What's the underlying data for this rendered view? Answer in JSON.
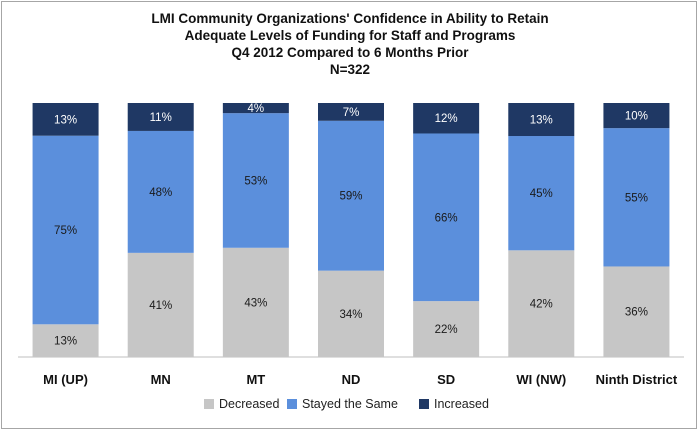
{
  "chart_data": {
    "type": "bar",
    "stacked": true,
    "percent": true,
    "title_lines": [
      "LMI Community Organizations'  Confidence in Ability to Retain",
      "Adequate Levels of Funding for Staff and Programs",
      "Q4 2012 Compared to 6 Months Prior",
      "N=322"
    ],
    "categories": [
      "MI (UP)",
      "MN",
      "MT",
      "ND",
      "SD",
      "WI (NW)",
      "Ninth District"
    ],
    "series": [
      {
        "name": "Decreased",
        "color": "#c6c6c6",
        "values": [
          13,
          41,
          43,
          34,
          22,
          42,
          36
        ],
        "labels": [
          "13%",
          "41%",
          "43%",
          "34%",
          "22%",
          "42%",
          "36%"
        ]
      },
      {
        "name": "Stayed the Same",
        "color": "#5b8fdc",
        "values": [
          75,
          48,
          53,
          59,
          66,
          45,
          55
        ],
        "labels": [
          "75%",
          "48%",
          "53%",
          "59%",
          "66%",
          "45%",
          "55%"
        ]
      },
      {
        "name": "Increased",
        "color": "#1f3864",
        "values": [
          13,
          11,
          4,
          7,
          12,
          13,
          10
        ],
        "labels": [
          "13%",
          "11%",
          "4%",
          "7%",
          "12%",
          "13%",
          "10%"
        ]
      }
    ],
    "ylim": [
      0,
      100
    ],
    "grid": false,
    "legend_position": "bottom"
  }
}
